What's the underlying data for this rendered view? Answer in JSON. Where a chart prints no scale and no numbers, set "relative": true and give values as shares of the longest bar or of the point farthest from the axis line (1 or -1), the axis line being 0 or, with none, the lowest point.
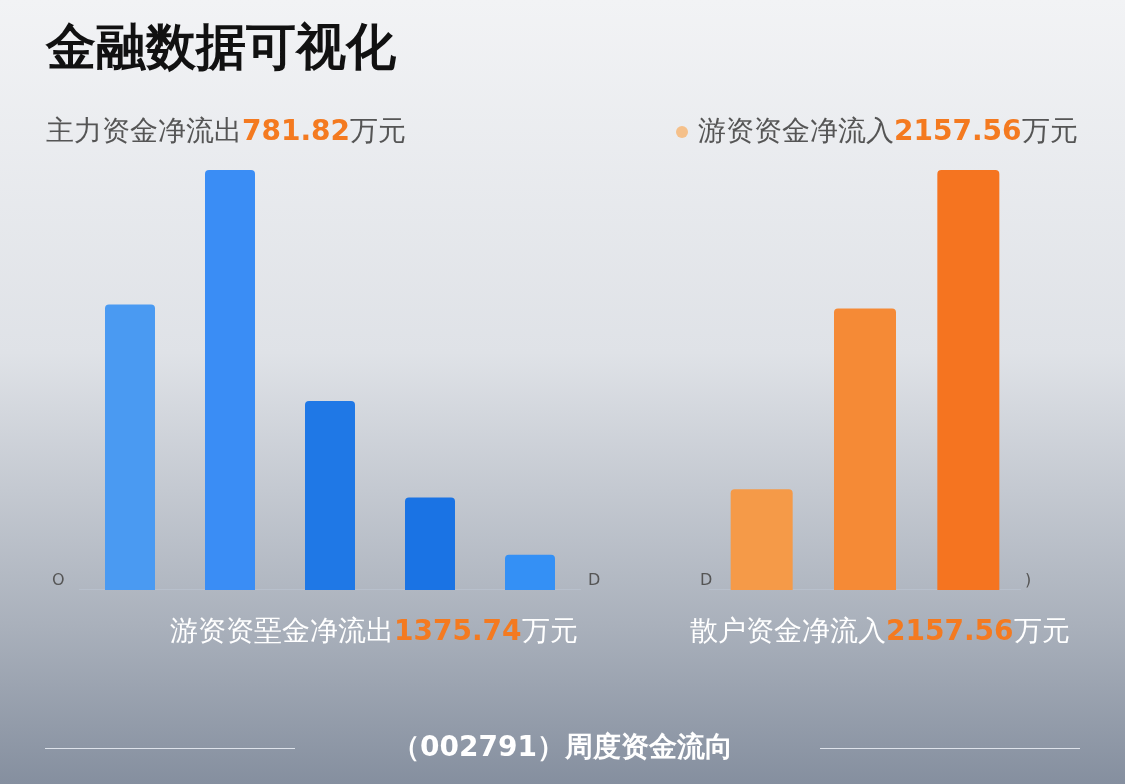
{
  "chart_data": [
    {
      "type": "bar",
      "title": "金融数据可视化",
      "subtitle": "主力资金净流出781.82万元",
      "xlabel": "游资资堊金净流出1375.74万元",
      "relative": true,
      "categories": [
        null,
        null,
        null,
        null,
        null
      ],
      "series": [
        {
          "values": [
            0.68,
            1,
            0.45,
            0.22,
            0.084
          ],
          "colors": [
            "#4a9af2",
            "#3a8df5",
            "#1f78e6",
            "#1a73e4",
            "#3490f5"
          ]
        }
      ],
      "annotations": [
        "O",
        "D"
      ],
      "grid": false,
      "legend": false
    },
    {
      "type": "bar",
      "subtitle": "游资资金净流入2157.56万元",
      "xlabel": "散户资金净流入2157.56万元",
      "relative": true,
      "categories": [
        null,
        null,
        null
      ],
      "series": [
        {
          "values": [
            0.24,
            0.67,
            1
          ],
          "colors": [
            "#f59a48",
            "#f58a36",
            "#f57420"
          ]
        }
      ],
      "annotations": [
        "D",
        ")",
        "（002791）周度资金流向"
      ],
      "grid": false,
      "legend": false
    }
  ]
}
